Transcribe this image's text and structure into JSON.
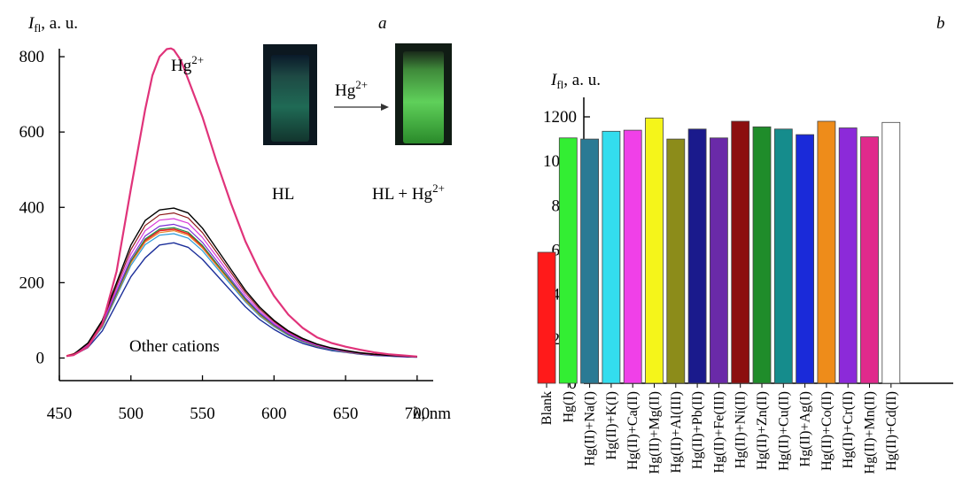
{
  "chart_data": [
    {
      "type": "line",
      "panel_label": "a",
      "ylabel_symbol": "I",
      "ylabel_subscript": "fl",
      "ylabel_suffix": ", a. u.",
      "xlabel": "λ, nm",
      "xlim": [
        450,
        710
      ],
      "ylim": [
        -60,
        880
      ],
      "xticks": [
        450,
        500,
        550,
        600,
        650,
        700
      ],
      "yticks": [
        0,
        200,
        400,
        600,
        800
      ],
      "annotations": {
        "peak_label_base": "Hg",
        "peak_label_sup": "2+",
        "others_label": "Other cations",
        "vial_left_label": "HL",
        "vial_arrow_label_base": "Hg",
        "vial_arrow_label_sup": "2+",
        "vial_right_label_base": "HL + Hg",
        "vial_right_label_sup": "2+"
      },
      "series": [
        {
          "color": "#e0337a",
          "width": 2.2,
          "x": [
            455,
            460,
            470,
            480,
            490,
            500,
            510,
            515,
            520,
            525,
            528,
            530,
            535,
            540,
            550,
            560,
            570,
            580,
            590,
            600,
            610,
            620,
            630,
            640,
            650,
            660,
            670,
            680,
            690,
            700
          ],
          "y": [
            5,
            8,
            30,
            90,
            230,
            450,
            660,
            750,
            800,
            820,
            822,
            818,
            790,
            740,
            640,
            520,
            410,
            310,
            230,
            165,
            115,
            80,
            55,
            40,
            30,
            22,
            15,
            10,
            7,
            4
          ]
        },
        {
          "color": "#000000",
          "width": 1.4,
          "x": [
            455,
            460,
            470,
            480,
            490,
            500,
            510,
            520,
            530,
            540,
            550,
            560,
            570,
            580,
            590,
            600,
            610,
            620,
            630,
            640,
            650,
            660,
            670,
            680,
            690,
            700
          ],
          "y": [
            5,
            10,
            40,
            100,
            200,
            300,
            365,
            393,
            398,
            385,
            345,
            290,
            235,
            180,
            135,
            100,
            72,
            52,
            37,
            27,
            20,
            14,
            10,
            7,
            5,
            3
          ]
        },
        {
          "color": "#8c1a1a",
          "width": 1.2,
          "x": [
            455,
            460,
            470,
            480,
            490,
            500,
            510,
            520,
            530,
            540,
            550,
            560,
            570,
            580,
            590,
            600,
            610,
            620,
            630,
            640,
            650,
            660,
            670,
            680,
            690,
            700
          ],
          "y": [
            5,
            10,
            38,
            96,
            192,
            288,
            352,
            380,
            385,
            372,
            333,
            280,
            227,
            174,
            130,
            97,
            70,
            50,
            36,
            26,
            19,
            13,
            9,
            7,
            5,
            3
          ]
        },
        {
          "color": "#d93ad9",
          "width": 1.2,
          "x": [
            455,
            460,
            470,
            480,
            490,
            500,
            510,
            520,
            530,
            540,
            550,
            560,
            570,
            580,
            590,
            600,
            610,
            620,
            630,
            640,
            650,
            660,
            670,
            680,
            690,
            700
          ],
          "y": [
            5,
            10,
            36,
            92,
            184,
            276,
            338,
            366,
            370,
            358,
            320,
            269,
            218,
            167,
            125,
            93,
            67,
            48,
            34,
            25,
            18,
            13,
            9,
            6,
            4,
            3
          ]
        },
        {
          "color": "#7b2fd6",
          "width": 1.2,
          "x": [
            455,
            460,
            470,
            480,
            490,
            500,
            510,
            520,
            530,
            540,
            550,
            560,
            570,
            580,
            590,
            600,
            610,
            620,
            630,
            640,
            650,
            660,
            670,
            680,
            690,
            700
          ],
          "y": [
            5,
            9,
            35,
            88,
            176,
            264,
            324,
            350,
            355,
            343,
            307,
            258,
            209,
            160,
            120,
            89,
            64,
            46,
            33,
            24,
            17,
            12,
            8,
            6,
            4,
            3
          ]
        },
        {
          "color": "#1f8a3a",
          "width": 1.2,
          "x": [
            455,
            460,
            470,
            480,
            490,
            500,
            510,
            520,
            530,
            540,
            550,
            560,
            570,
            580,
            590,
            600,
            610,
            620,
            630,
            640,
            650,
            660,
            670,
            680,
            690,
            700
          ],
          "y": [
            5,
            9,
            34,
            86,
            172,
            258,
            316,
            342,
            346,
            334,
            299,
            251,
            204,
            156,
            117,
            87,
            62,
            45,
            32,
            23,
            17,
            12,
            8,
            6,
            4,
            3
          ]
        },
        {
          "color": "#e8862a",
          "width": 1.2,
          "x": [
            455,
            460,
            470,
            480,
            490,
            500,
            510,
            520,
            530,
            540,
            550,
            560,
            570,
            580,
            590,
            600,
            610,
            620,
            630,
            640,
            650,
            660,
            670,
            680,
            690,
            700
          ],
          "y": [
            5,
            9,
            33,
            84,
            168,
            252,
            308,
            333,
            338,
            326,
            292,
            245,
            199,
            152,
            114,
            85,
            61,
            44,
            31,
            23,
            16,
            11,
            8,
            6,
            4,
            3
          ]
        },
        {
          "color": "#2a9ad9",
          "width": 1.2,
          "x": [
            455,
            460,
            470,
            480,
            490,
            500,
            510,
            520,
            530,
            540,
            550,
            560,
            570,
            580,
            590,
            600,
            610,
            620,
            630,
            640,
            650,
            660,
            670,
            680,
            690,
            700
          ],
          "y": [
            5,
            9,
            32,
            82,
            164,
            246,
            301,
            326,
            330,
            318,
            285,
            239,
            194,
            149,
            111,
            83,
            60,
            43,
            31,
            22,
            16,
            11,
            8,
            5,
            4,
            3
          ]
        },
        {
          "color": "#e82020",
          "width": 1.6,
          "x": [
            455,
            460,
            470,
            480,
            490,
            500,
            510,
            520,
            530,
            540,
            550,
            560,
            570,
            580,
            590,
            600,
            610,
            620,
            630,
            640,
            650,
            660,
            670,
            680,
            690,
            700
          ],
          "y": [
            6,
            11,
            34,
            86,
            170,
            255,
            312,
            338,
            342,
            330,
            296,
            249,
            202,
            155,
            117,
            88,
            64,
            46,
            34,
            25,
            19,
            14,
            10,
            8,
            6,
            4
          ]
        },
        {
          "color": "#1c2f9a",
          "width": 1.4,
          "x": [
            455,
            460,
            470,
            480,
            490,
            500,
            510,
            520,
            530,
            540,
            550,
            560,
            570,
            580,
            590,
            600,
            610,
            620,
            630,
            640,
            650,
            660,
            670,
            680,
            690,
            700
          ],
          "y": [
            5,
            8,
            28,
            72,
            144,
            216,
            266,
            300,
            306,
            294,
            262,
            220,
            178,
            136,
            102,
            76,
            55,
            39,
            28,
            20,
            15,
            10,
            7,
            5,
            3,
            2
          ]
        }
      ]
    },
    {
      "type": "bar",
      "panel_label": "b",
      "ylabel_symbol": "I",
      "ylabel_subscript": "fl",
      "ylabel_suffix": ", a. u.",
      "ylim": [
        0,
        1200
      ],
      "yticks": [
        0,
        200,
        400,
        600,
        800,
        1000,
        1200
      ],
      "categories": [
        "Blank",
        "Hg(I)",
        "Hg(II)+Na(I)",
        "Hg(II)+K(I)",
        "Hg(II)+Ca(II)",
        "Hg(II)+Mg(II)",
        "Hg(II)+Al(III)",
        "Hg(II)+Pb(II)",
        "Hg(II)+Fe(III)",
        "Hg(II)+Ni(II)",
        "Hg(II)+Zn(II)",
        "Hg(II)+Cu(II)",
        "Hg(II)+Ag(I)",
        "Hg(II)+Co(II)",
        "Hg(II)+Cr(II)",
        "Hg(II)+Mn(II)",
        "Hg(II)+Cd(II)"
      ],
      "values": [
        590,
        1105,
        1100,
        1135,
        1140,
        1195,
        1100,
        1145,
        1105,
        1180,
        1155,
        1145,
        1120,
        1180,
        1150,
        1110,
        1175
      ],
      "colors": [
        "#ff1a1a",
        "#33ee33",
        "#2a7a94",
        "#33ddee",
        "#f040e8",
        "#f5f51a",
        "#8c8c1a",
        "#1a1a8c",
        "#6a2aa8",
        "#8c0f0f",
        "#1f8c2a",
        "#158c8c",
        "#1a2ad9",
        "#ee8c1a",
        "#8c2ad9",
        "#e02a8c",
        "#ffffff"
      ]
    }
  ]
}
